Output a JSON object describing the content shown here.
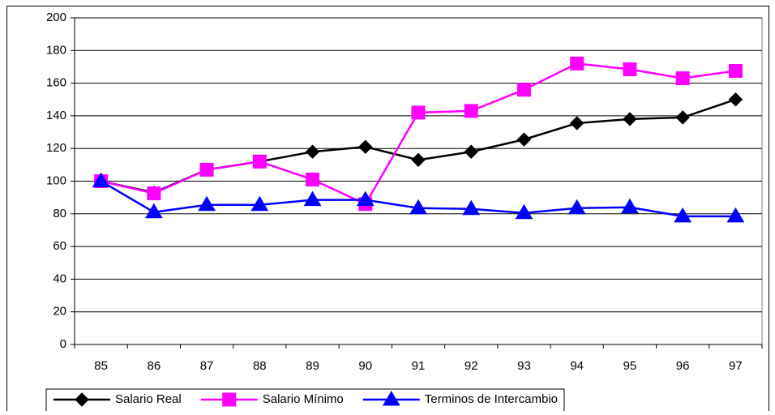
{
  "chart_data": {
    "type": "line",
    "categories": [
      "85",
      "86",
      "87",
      "88",
      "89",
      "90",
      "91",
      "92",
      "93",
      "94",
      "95",
      "96",
      "97"
    ],
    "series": [
      {
        "name": "Salario Real",
        "color": "#000000",
        "marker": "diamond",
        "values": [
          100,
          93,
          107,
          112,
          118,
          121,
          113,
          118,
          125.5,
          135.5,
          138,
          139,
          150
        ]
      },
      {
        "name": "Salario Mínimo",
        "color": "#ff00ff",
        "marker": "square",
        "values": [
          100,
          92.5,
          107,
          112,
          101,
          86,
          142,
          143,
          156,
          172,
          168.5,
          163,
          167.5
        ]
      },
      {
        "name": "Terminos de Intercambio",
        "color": "#0000ff",
        "marker": "triangle",
        "values": [
          100,
          81,
          85.5,
          85.5,
          88.5,
          88.5,
          83.5,
          83,
          80.5,
          83.5,
          84,
          78.5,
          78.5
        ]
      }
    ],
    "ylim": [
      0,
      200
    ],
    "yticks": [
      0,
      20,
      40,
      60,
      80,
      100,
      120,
      140,
      160,
      180,
      200
    ],
    "grid": true,
    "legend": "bottom"
  }
}
